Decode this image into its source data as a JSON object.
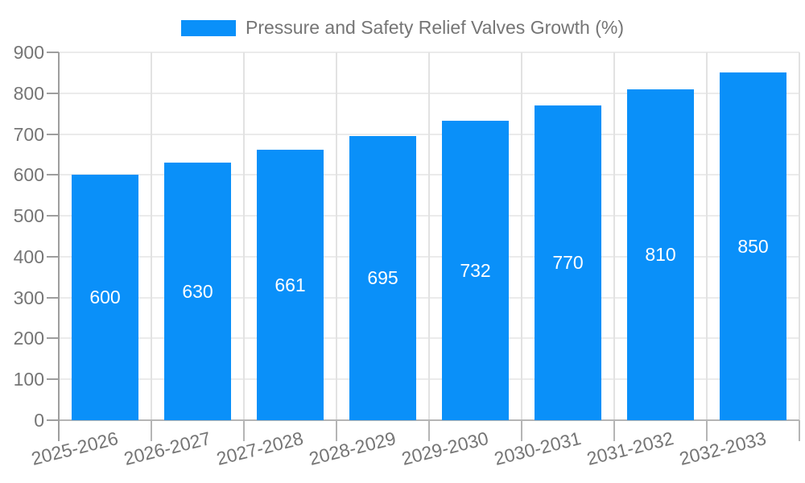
{
  "legend": {
    "label": "Pressure and Safety Relief Valves Growth (%)"
  },
  "chart_data": {
    "type": "bar",
    "title": "Pressure and Safety Relief Valves Growth (%)",
    "categories": [
      "2025-2026",
      "2026-2027",
      "2027-2028",
      "2028-2029",
      "2029-2030",
      "2030-2031",
      "2031-2032",
      "2032-2033"
    ],
    "series": [
      {
        "name": "Pressure and Safety Relief Valves Growth (%)",
        "values": [
          600,
          630,
          661,
          695,
          732,
          770,
          810,
          850
        ]
      }
    ],
    "xlabel": "",
    "ylabel": "",
    "ylim": [
      0,
      900
    ],
    "yticks": [
      0,
      100,
      200,
      300,
      400,
      500,
      600,
      700,
      800,
      900
    ],
    "grid": true,
    "legend_position": "top",
    "x_label_rotation_deg": -14,
    "value_labels_shown": true,
    "colors": {
      "bar": "#0A90F9",
      "bar_value_text": "#FFFFFF",
      "axis_text": "#757575",
      "y_axis_line": "#9E9E9E",
      "x_axis_line": "#B5B5B5",
      "grid_line_h": "#EBEBEB",
      "grid_line_v": "#E2E2E2"
    }
  }
}
